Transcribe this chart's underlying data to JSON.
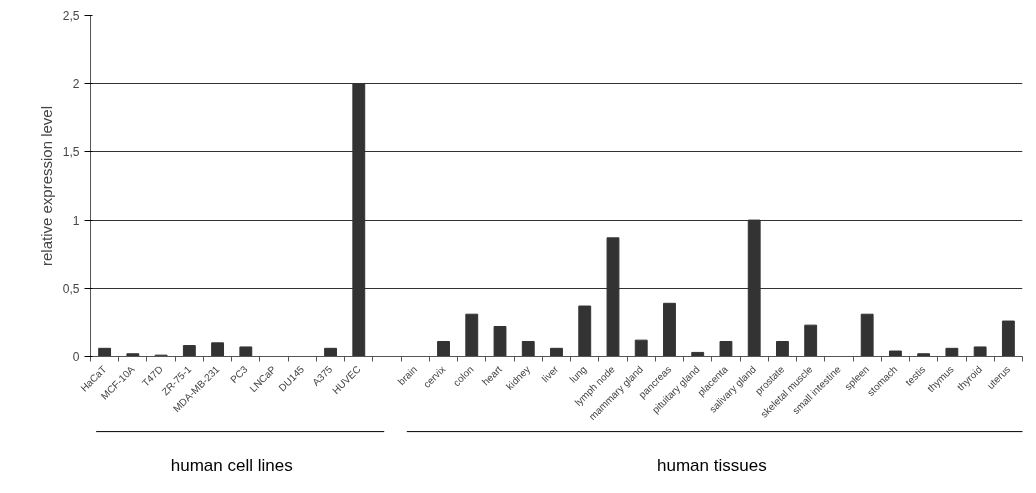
{
  "chart_data": {
    "type": "bar",
    "ylabel": "relative expression level",
    "categories": [
      "HaCaT",
      "MCF-10A",
      "T47D",
      "ZR-75-1",
      "MDA-MB-231",
      "PC3",
      "LNCaP",
      "DU145",
      "A375",
      "HUVEC",
      null,
      "brain",
      "cervix",
      "colon",
      "heart",
      "kidney",
      "liver",
      "lung",
      "lymph node",
      "mammary gland",
      "pancreas",
      "pituitary gland",
      "placenta",
      "salivary gland",
      "prostate",
      "skeletal muscle",
      "small intestine",
      "spleen",
      "stomach",
      "testis",
      "thymus",
      "thyroid",
      "uterus"
    ],
    "values": [
      0.06,
      0.02,
      0.01,
      0.08,
      0.1,
      0.07,
      0,
      0,
      0.06,
      2.0,
      null,
      0,
      0.11,
      0.31,
      0.22,
      0.11,
      0.06,
      0.37,
      0.87,
      0.12,
      0.39,
      0.03,
      0.11,
      1.0,
      0.11,
      0.23,
      0,
      0.31,
      0.04,
      0.02,
      0.06,
      0.07,
      0.26
    ],
    "color": "#333333",
    "ylim": [
      0,
      2.5
    ],
    "yticks": [
      0,
      {
        "value": 0.5,
        "label": "0,5"
      },
      1,
      {
        "value": 1.5,
        "label": "1,5"
      },
      2,
      {
        "value": 2.5,
        "label": "2,5"
      }
    ],
    "grid": "y",
    "annotations": [
      "human cell lines",
      "human tissues"
    ]
  }
}
